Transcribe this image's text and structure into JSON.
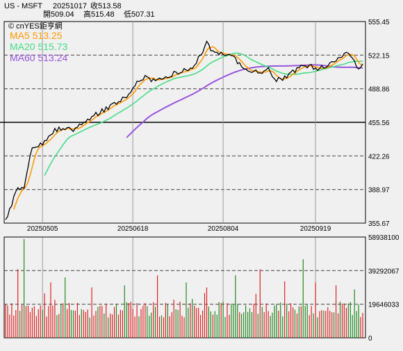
{
  "header": {
    "symbol": "US - MSFT",
    "date": "20251017",
    "close_label": "收513.58",
    "open_label": "開509.04",
    "high_label": "高515.48",
    "low_label": "低507.31"
  },
  "watermark": "© cnYES鉅亨網",
  "legend": [
    {
      "label": "MA5 513.25",
      "color": "#ff9900"
    },
    {
      "label": "MA20 515.73",
      "color": "#44dd88"
    },
    {
      "label": "MA60 513.24",
      "color": "#9955dd"
    }
  ],
  "colors": {
    "price_line": "#000000",
    "ma5": "#ff9900",
    "ma20": "#44dd88",
    "ma60": "#9955dd",
    "volume_up": "#dd2222",
    "volume_down": "#228822",
    "background": "#f0f0f0"
  },
  "chart_data": [
    {
      "type": "line",
      "panel": "price",
      "ylim": [
        355.67,
        555.45
      ],
      "y_ticks": [
        "555.45",
        "522.15",
        "488.86",
        "455.56",
        "422.26",
        "388.97",
        "355.67"
      ],
      "x_tick_labels": [
        "20250505",
        "20250618",
        "20250804",
        "20250919"
      ],
      "x_tick_index": [
        18,
        62,
        106,
        151
      ],
      "n_points": 175,
      "price_anchors": [
        [
          0,
          359
        ],
        [
          3,
          372
        ],
        [
          5,
          388
        ],
        [
          7,
          389
        ],
        [
          9,
          392
        ],
        [
          11,
          410
        ],
        [
          13,
          432
        ],
        [
          15,
          430
        ],
        [
          18,
          434
        ],
        [
          21,
          443
        ],
        [
          24,
          448
        ],
        [
          27,
          450
        ],
        [
          30,
          451
        ],
        [
          33,
          449
        ],
        [
          36,
          453
        ],
        [
          40,
          458
        ],
        [
          44,
          463
        ],
        [
          48,
          468
        ],
        [
          52,
          473
        ],
        [
          56,
          477
        ],
        [
          60,
          483
        ],
        [
          62,
          490
        ],
        [
          64,
          495
        ],
        [
          66,
          497
        ],
        [
          68,
          500
        ],
        [
          72,
          497
        ],
        [
          76,
          499
        ],
        [
          80,
          502
        ],
        [
          84,
          505
        ],
        [
          88,
          507
        ],
        [
          92,
          512
        ],
        [
          96,
          525
        ],
        [
          98,
          535
        ],
        [
          100,
          528
        ],
        [
          104,
          524
        ],
        [
          108,
          522
        ],
        [
          112,
          518
        ],
        [
          116,
          507
        ],
        [
          120,
          506
        ],
        [
          124,
          505
        ],
        [
          128,
          508
        ],
        [
          132,
          497
        ],
        [
          136,
          500
        ],
        [
          140,
          505
        ],
        [
          144,
          510
        ],
        [
          148,
          512
        ],
        [
          152,
          508
        ],
        [
          156,
          512
        ],
        [
          160,
          516
        ],
        [
          163,
          518
        ],
        [
          166,
          526
        ],
        [
          168,
          522
        ],
        [
          170,
          515
        ],
        [
          172,
          510
        ],
        [
          174,
          513.58
        ]
      ],
      "series": [
        {
          "name": "MA5"
        },
        {
          "name": "MA20"
        },
        {
          "name": "MA60"
        }
      ]
    },
    {
      "type": "bar",
      "panel": "volume",
      "ylim": [
        0,
        58938100
      ],
      "y_ticks": [
        "58938100",
        "39292067",
        "19646033",
        "0"
      ],
      "seed": 20251017
    }
  ]
}
